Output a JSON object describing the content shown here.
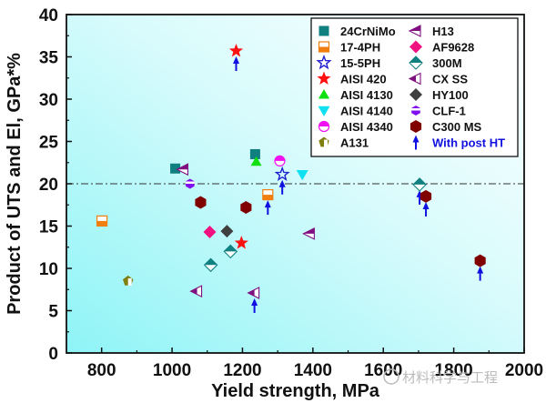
{
  "chart_data": {
    "type": "scatter",
    "title": "",
    "xlabel": "Yield strength, MPa",
    "ylabel": "Product of UTS and El, GPa*%",
    "xlim": [
      700,
      2000
    ],
    "ylim": [
      0,
      40
    ],
    "xticks": [
      800,
      1000,
      1200,
      1400,
      1600,
      1800,
      2000
    ],
    "yticks": [
      0,
      5,
      10,
      15,
      20,
      25,
      30,
      35,
      40
    ],
    "reference_line": {
      "y": 20,
      "style": "dash-dot"
    },
    "legend_position": "top-right",
    "background": "gradient cyan (bottom-left) to white (top-right)",
    "series": [
      {
        "name": "24CrNiMo",
        "marker": "square",
        "color": "#0f7f7f",
        "points": [
          [
            1009,
            21.8
          ],
          [
            1236,
            23.5
          ]
        ]
      },
      {
        "name": "17-4PH",
        "marker": "square-half",
        "color": "#f07f10",
        "points": [
          [
            801,
            15.6
          ],
          [
            1272,
            18.7
          ]
        ]
      },
      {
        "name": "15-5PH",
        "marker": "star-open",
        "color": "#2020d0",
        "points": [
          [
            1313,
            21.1
          ]
        ]
      },
      {
        "name": "AISI 420",
        "marker": "star",
        "color": "#ff1010",
        "points": [
          [
            1182,
            35.7
          ],
          [
            1197,
            13.0
          ]
        ]
      },
      {
        "name": "AISI 4130",
        "marker": "triangle-up",
        "color": "#10e010",
        "points": [
          [
            1239,
            22.6
          ]
        ]
      },
      {
        "name": "AISI 4140",
        "marker": "triangle-down",
        "color": "#10e0f0",
        "points": [
          [
            1370,
            21.1
          ]
        ]
      },
      {
        "name": "AISI 4340",
        "marker": "circle-half",
        "color": "#f010f0",
        "points": [
          [
            1306,
            22.7
          ]
        ]
      },
      {
        "name": "A131",
        "marker": "pentagon-half",
        "color": "#808010",
        "points": [
          [
            875,
            8.5
          ]
        ]
      },
      {
        "name": "H13",
        "marker": "triangle-left-half",
        "color": "#801080",
        "points": [
          [
            1032,
            21.7
          ],
          [
            1391,
            14.1
          ]
        ]
      },
      {
        "name": "AF9628",
        "marker": "diamond",
        "color": "#f01080",
        "points": [
          [
            1107,
            14.3
          ]
        ]
      },
      {
        "name": "300M",
        "marker": "diamond-half",
        "color": "#108080",
        "points": [
          [
            1166,
            12.0
          ],
          [
            1110,
            10.4
          ],
          [
            1703,
            19.9
          ]
        ]
      },
      {
        "name": "CX SS",
        "marker": "triangle-left-half2",
        "color": "#801080",
        "points": [
          [
            1071,
            7.3
          ],
          [
            1234,
            7.1
          ]
        ]
      },
      {
        "name": "HY100",
        "marker": "diamond",
        "color": "#404040",
        "points": [
          [
            1156,
            14.4
          ]
        ]
      },
      {
        "name": "CLF-1",
        "marker": "hexagon-half",
        "color": "#8010f0",
        "points": [
          [
            1051,
            20.0
          ]
        ]
      },
      {
        "name": "C300 MS",
        "marker": "hexagon",
        "color": "#800000",
        "points": [
          [
            1081,
            17.8
          ],
          [
            1210,
            17.2
          ],
          [
            1721,
            18.5
          ],
          [
            1875,
            10.9
          ]
        ]
      }
    ],
    "post_ht_arrows": {
      "label": "With post HT",
      "color": "#1010e0",
      "points": [
        [
          1182,
          35.7
        ],
        [
          1313,
          21.1
        ],
        [
          1272,
          18.7
        ],
        [
          1234,
          7.1
        ],
        [
          1703,
          19.9
        ],
        [
          1721,
          18.5
        ],
        [
          1875,
          10.9
        ]
      ]
    }
  },
  "watermark": "材料科学与工程"
}
